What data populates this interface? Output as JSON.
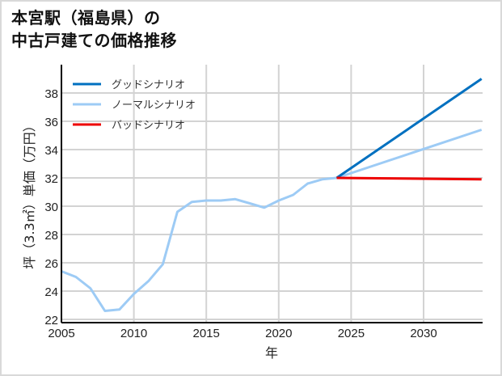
{
  "title_line1": "本宮駅（福島県）の",
  "title_line2": "中古戸建ての価格推移",
  "chart_data": {
    "type": "line",
    "title": "本宮駅（福島県）の中古戸建ての価格推移",
    "xlabel": "年",
    "ylabel": "坪（3.3㎡）単価（万円）",
    "xlim": [
      2005,
      2034
    ],
    "ylim": [
      22,
      39.6
    ],
    "xticks": [
      2005,
      2010,
      2015,
      2020,
      2025,
      2030
    ],
    "yticks": [
      22,
      24,
      26,
      28,
      30,
      32,
      34,
      36,
      38
    ],
    "grid": true,
    "legend_position": "upper left",
    "series": [
      {
        "name": "グッドシナリオ",
        "color": "#0070c0",
        "x": [
          2024,
          2034
        ],
        "values": [
          32.0,
          39.0
        ]
      },
      {
        "name": "ノーマルシナリオ",
        "color": "#9dcbf5",
        "x": [
          2005,
          2006,
          2007,
          2008,
          2009,
          2010,
          2011,
          2012,
          2013,
          2014,
          2015,
          2016,
          2017,
          2018,
          2019,
          2020,
          2021,
          2022,
          2023,
          2024,
          2034
        ],
        "values": [
          25.4,
          25.0,
          24.2,
          22.6,
          22.7,
          23.8,
          24.7,
          25.9,
          29.6,
          30.3,
          30.4,
          30.4,
          30.5,
          30.2,
          29.9,
          30.4,
          30.8,
          31.6,
          31.9,
          32.0,
          35.4
        ]
      },
      {
        "name": "バッドシナリオ",
        "color": "#ee0000",
        "x": [
          2024,
          2034
        ],
        "values": [
          32.0,
          31.9
        ]
      }
    ]
  }
}
